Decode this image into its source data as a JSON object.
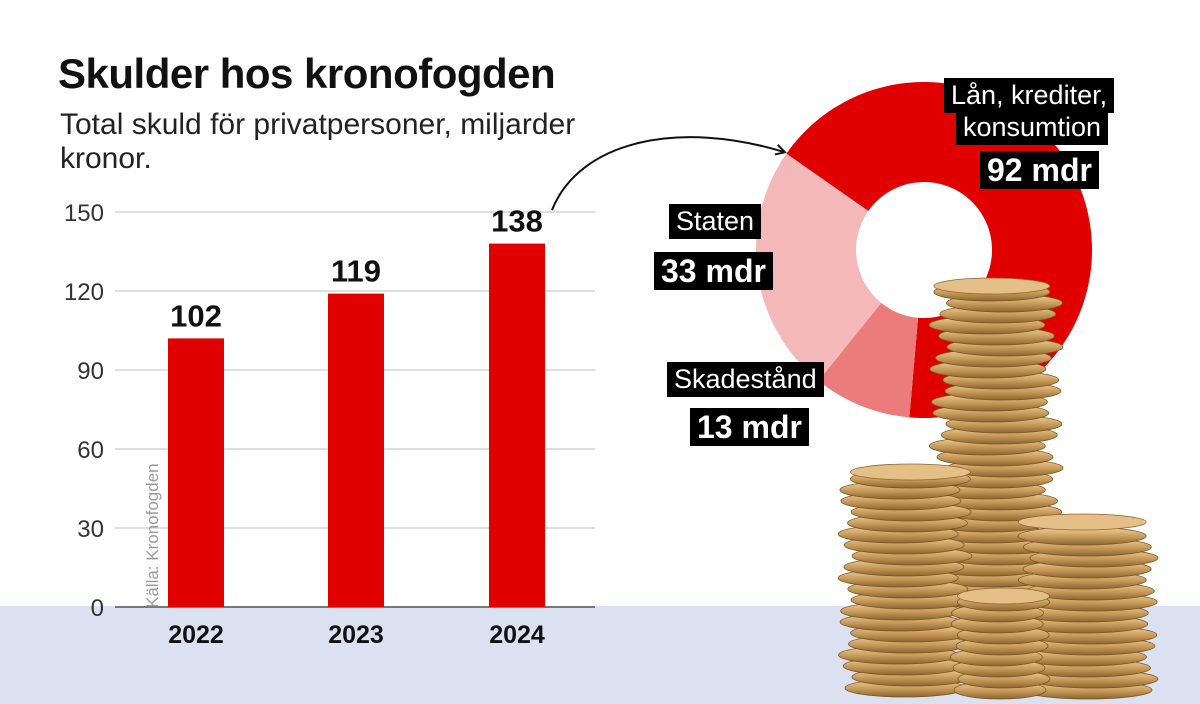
{
  "title": "Skulder hos kronofogden",
  "subtitle": "Total skuld för privatpersoner, miljarder kronor.",
  "source": "Källa: Kronofogden",
  "colors": {
    "bar": "#e00000",
    "grid": "#bdbdbd",
    "slice_loans": "#e00000",
    "slice_state": "#f5b8b8",
    "slice_damages": "#ec7b7b",
    "ground": "#dbe1f1"
  },
  "chart_data": [
    {
      "type": "bar",
      "categories": [
        "2022",
        "2023",
        "2024"
      ],
      "values": [
        102,
        119,
        138
      ],
      "value_labels": [
        "102",
        "119",
        "138"
      ],
      "title": "Skulder hos kronofogden",
      "subtitle": "Total skuld för privatpersoner, miljarder kronor.",
      "ylim": [
        0,
        150
      ],
      "yticks": [
        0,
        30,
        60,
        90,
        120,
        150
      ],
      "ytick_labels": [
        "0",
        "30",
        "60",
        "90",
        "120",
        "150"
      ],
      "grid": true
    },
    {
      "type": "pie",
      "variant": "donut",
      "slices": [
        {
          "name": "Lån, krediter, konsumtion",
          "name_lines": [
            "Lån, krediter,",
            "konsumtion"
          ],
          "value": 92,
          "label": "92 mdr"
        },
        {
          "name": "Skadestånd",
          "name_lines": [
            "Skadestånd"
          ],
          "value": 13,
          "label": "13 mdr"
        },
        {
          "name": "Staten",
          "name_lines": [
            "Staten"
          ],
          "value": 33,
          "label": "33 mdr"
        }
      ]
    }
  ]
}
